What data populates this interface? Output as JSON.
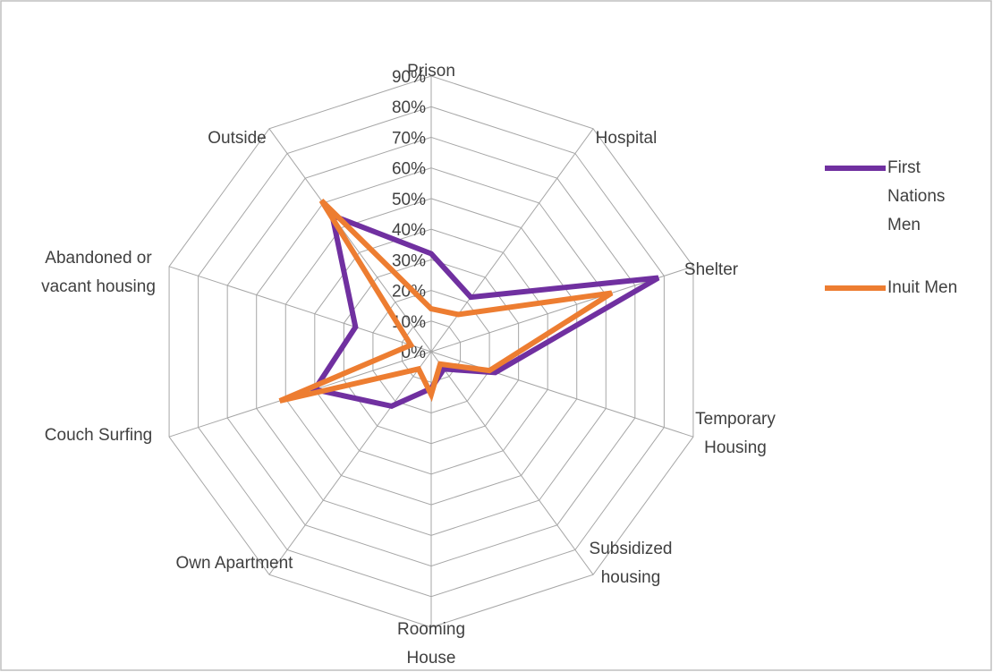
{
  "chart_data": {
    "type": "radar",
    "categories": [
      "Prison",
      "Hospital",
      "Shelter",
      "Temporary Housing",
      "Subsidized housing",
      "Rooming House",
      "Own Apartment",
      "Couch Surfing",
      "Abandoned or vacant housing",
      "Outside"
    ],
    "series": [
      {
        "name": "First Nations Men",
        "color": "#7030a0",
        "values": [
          32,
          22,
          78,
          22,
          7,
          12,
          22,
          40,
          26,
          55
        ]
      },
      {
        "name": "Inuit Men",
        "color": "#ed7d31",
        "values": [
          14,
          15,
          62,
          20,
          5,
          14,
          7,
          52,
          7,
          61
        ]
      }
    ],
    "ylim": [
      0,
      90
    ],
    "yticks": [
      {
        "value": 0,
        "label": "0%"
      },
      {
        "value": 10,
        "label": "10%"
      },
      {
        "value": 20,
        "label": "20%"
      },
      {
        "value": 30,
        "label": "30%"
      },
      {
        "value": 40,
        "label": "40%"
      },
      {
        "value": 50,
        "label": "50%"
      },
      {
        "value": 60,
        "label": "60%"
      },
      {
        "value": 70,
        "label": "70%"
      },
      {
        "value": 80,
        "label": "80%"
      },
      {
        "value": 90,
        "label": "90%"
      }
    ],
    "grid": true,
    "legend": "right"
  }
}
